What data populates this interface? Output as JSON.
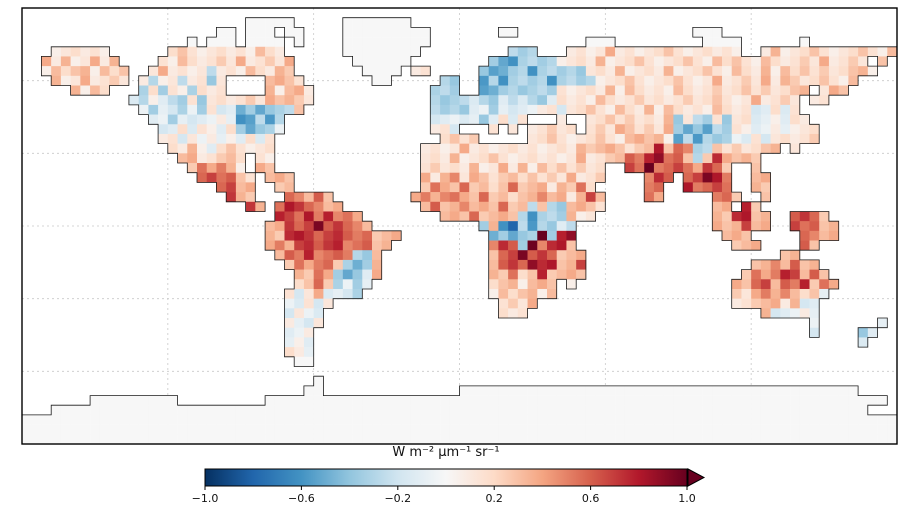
{
  "figure": {
    "background": "#ffffff",
    "frame_color": "#000000",
    "gridline_color": "#c9c9c9",
    "coastline_color": "#1a1a1a"
  },
  "chart_data": {
    "type": "heatmap",
    "subtype": "global-gridded-world-map",
    "title": "",
    "colorbar_label": "W m⁻² µm⁻¹ sr⁻¹",
    "colormap": "RdBu_r",
    "value_range": [
      -1.0,
      1.0
    ],
    "tick_labels": [
      "−1.0",
      "−0.6",
      "−0.2",
      "0.2",
      "0.6",
      "1.0"
    ],
    "tick_values": [
      -1.0,
      -0.6,
      -0.2,
      0.2,
      0.6,
      1.0
    ],
    "extend": "max",
    "colors": [
      "#053061",
      "#2166ac",
      "#4393c3",
      "#92c5de",
      "#d1e5f0",
      "#f7f7f7",
      "#fddbc7",
      "#f4a582",
      "#d6604d",
      "#b2182b",
      "#67001f"
    ],
    "lon_range": [
      -180,
      180
    ],
    "lat_range": [
      90,
      -90
    ],
    "grid_lons": [
      -120,
      -60,
      0,
      60,
      120
    ],
    "grid_lats": [
      60,
      30,
      0,
      -30,
      -60
    ],
    "grid_cols": 90,
    "grid_rows": 45,
    "value_codes": {
      ".": null,
      "n": 0.0,
      "c": -0.12,
      "b": -0.32,
      "B": -0.55,
      "D": -0.8,
      "p": 0.12,
      "o": 0.32,
      "O": 0.55,
      "R": 0.75,
      "X": 0.95
    },
    "cells": [
      [
        "..........",
        "..........",
        "..........",
        "..........",
        "..........",
        "..........",
        "..........",
        "..........",
        ".........."
      ],
      [
        "..........",
        "..........",
        "...nnnnn..",
        "...nnnnnnn",
        "..........",
        "..........",
        "..........",
        "..........",
        ".........."
      ],
      [
        "..........",
        "..........",
        "nn.nnn.nn.",
        "...nnnnnnn",
        "nn.......n",
        "n.........",
        ".........n",
        "nn........",
        ".........."
      ],
      [
        "..........",
        ".......n.n",
        "nn.nnnn.n.",
        "...nnnnnnn",
        "nn........",
        "........nn",
        "n.........",
        "nnnn......",
        "n........."
      ],
      [
        "...pppppp.",
        ".....poppp",
        "ppppopp...",
        "...nnnnnnn",
        "n.........",
        "bbb...pppp",
        "opppppoppp",
        "pppp..popp",
        "poppppoppo"
      ],
      [
        "..opoppopo",
        "....ppoppp",
        "opoppopo..",
        "....nnnnnn",
        "........bB",
        "Bbbbbppppo",
        "pppoppppop",
        "popoppoppp",
        "opoppop.o."
      ],
      [
        "..popoopop",
        "o..poppppb",
        "pppoppoo..",
        ".....nnnn.",
        "pp.....bBB",
        "bbBbbbbbpp",
        "poppppoppp",
        "oppoppopop",
        "opoppoop.."
      ],
      [
        "...oppoppo",
        "p.pbppbppb",
        "p....ooop.",
        "......nn..",
        "...bb..BbB",
        "bbbbBbbbbp",
        "ppoppppopp",
        "poppopopoo",
        "ppoppo...."
      ],
      [
        ".....opop.",
        "..bpbppbpp",
        "p....opoop",
        "..........",
        "..bbb..BBb",
        "bbbbbppppp",
        "opoppppopp",
        "poppopoppo",
        "o.poo....."
      ],
      [
        "..........",
        ".cbpcbbpbp",
        "pppopoooop",
        "..........",
        "..bbbbcbbc",
        "bcbbcppppo",
        "pppoppppop",
        "popppoppop",
        ".pp......."
      ],
      [
        "..........",
        "..cbccbcbp",
        "ccBbBbbbo.",
        "..........",
        "..bbbbccbc",
        "cccppcppop",
        "poppopoppp",
        "popppccpcp",
        ".........."
      ],
      [
        "..........",
        "...ccbcccc",
        "pcBBbBb...",
        "..........",
        "..cccccbcp",
        "cp...p..pp",
        "opopppobpb",
        "bpbppccpcp",
        "p........."
      ],
      [
        "..........",
        "....ccpcpp",
        "cpbBbbc...",
        "..........",
        "..ppc...p.",
        "p.ppopp.po",
        "poopopobBb",
        "Bbbppccpcp",
        "pp........"
      ],
      [
        "..........",
        "....ppcpcp",
        "cpcpcp....",
        "..........",
        "...popo...",
        "..ppoppppo",
        "ppoooopBbB",
        "bbbccpcppp",
        "po........"
      ],
      [
        "..........",
        ".....ppopc",
        "popppp....",
        "..........",
        ".ppppopppp",
        "pppppppooo",
        "oopooRoOOb",
        "bopoppoo.p",
        ".........."
      ],
      [
        "..........",
        "......oopp",
        "oop.pp....",
        "..........",
        ".pppopppop",
        "pppppppopp",
        "ooOORXOOob",
        "oRoooo....",
        ".........."
      ],
      [
        "..........",
        ".......oOo",
        "Oop.oo....",
        "..........",
        ".popppoppo",
        "popopopopp",
        "..ROXOOROo",
        "ROo..o....",
        ".........."
      ],
      [
        "..........",
        "........OR",
        "OOop.ooo..",
        "..........",
        ".opoOpoopo",
        "opopopoppo",
        "....ORO.OR",
        "XRO..oo...",
        ".........."
      ],
      [
        "..........",
        "..........",
        "ORoo..oo..",
        "..........",
        ".oOooOoopo",
        "OooopooOp.",
        "....OO..RO",
        "ORO..oo...",
        ".........."
      ],
      [
        "..........",
        "..........",
        ".Roo...OOo",
        "Oo........",
        "oOoOOooOoo",
        "pooOoopoRo",
        "....Oo....",
        ".OOo..o...",
        ".........."
      ],
      [
        "..........",
        "..........",
        "...Ro.ORRO",
        "Ooo.......",
        ".oOooOoooO",
        "oobobbooop",
        "..........",
        ".oo.Ro....",
        ".........."
      ],
      [
        "..........",
        "..........",
        "......RROR",
        "OROOo.....",
        "...oooOooo",
        "obBbbbopp.",
        "..........",
        ".ooRRoo..O",
        "ROo......."
      ],
      [
        "..........",
        "..........",
        ".....ooROR",
        "XOROOo....",
        ".......boB",
        "DbBbbcb...",
        "..........",
        ".oooRoo..R",
        "OOoo......"
      ],
      [
        "..........",
        "..........",
        ".....ooRRR",
        "ORROOOooo.",
        "........Bb",
        "BbbXbRX...",
        "..........",
        "..ooo.....",
        "OOoo......"
      ],
      [
        "..........",
        "..........",
        ".....oOoRR",
        "ORROOOoo..",
        "........OR",
        "ObXORRo...",
        "..........",
        "...ooo....",
        "Oo........"
      ],
      [
        "..........",
        "..........",
        "......oOOR",
        "OOOObbo...",
        "........oO",
        "RXOROooo..",
        "..........",
        "........oo",
        ".........."
      ],
      [
        "..........",
        "..........",
        ".......oOo",
        "OOobBbo...",
        "........oO",
        "ROXRRooR..",
        "..........",
        ".....ooOoO",
        "oo........"
      ],
      [
        "..........",
        "..........",
        "........oo",
        "OobBbco...",
        "........oo",
        "OpoRoooo..",
        "..........",
        "....oOoORR",
        "oOo......."
      ],
      [
        "..........",
        "..........",
        "........po",
        "Oobcbc....",
        "........po",
        "opooo.p...",
        "..........",
        "...ooORoOO",
        "RoOo......"
      ],
      [
        "..........",
        "..........",
        ".......pcp",
        "occcb.....",
        "........po",
        "poopo.....",
        "..........",
        "...opoOoOo",
        "poc......."
      ],
      [
        "..........",
        "..........",
        ".......ccp",
        "cp........",
        ".........p",
        "opo.......",
        "..........",
        "...ppooopo",
        "cc........"
      ],
      [
        "..........",
        "..........",
        ".......cpc",
        "c.........",
        ".........p",
        "pp........",
        "..........",
        "......occc",
        "pc........"
      ],
      [
        "..........",
        "..........",
        ".......pcc",
        "p.........",
        "..........",
        "..........",
        "..........",
        "..........",
        ".c......c."
      ],
      [
        "..........",
        "..........",
        ".......ccp",
        "..........",
        "..........",
        "..........",
        "..........",
        "..........",
        ".c....bc.."
      ],
      [
        "..........",
        "..........",
        ".......cpc",
        "..........",
        "..........",
        "..........",
        "..........",
        "..........",
        "......c..."
      ],
      [
        "..........",
        "..........",
        ".......ppc",
        "..........",
        "..........",
        "..........",
        "..........",
        "..........",
        ".........."
      ],
      [
        "..........",
        "..........",
        "........nn",
        "..........",
        "..........",
        "..........",
        "..........",
        "..........",
        ".........."
      ],
      [
        "..........",
        "..........",
        "..........",
        "..........",
        "..........",
        "..........",
        "..........",
        "..........",
        ".........."
      ],
      [
        "..........",
        "..........",
        "..........",
        "n.........",
        "..........",
        "..........",
        "..........",
        "..........",
        ".........."
      ],
      [
        "..........",
        "..........",
        ".........n",
        "n.........",
        ".....nnnnn",
        "nnnnnnnnnn",
        "nnnnnnnnnn",
        "nnnnnnnnnn",
        "nnnnnn...."
      ],
      [
        ".......nnn",
        "nnnnnn....",
        ".....nnnnn",
        "nnnnnnnnnn",
        "nnnnnnnnnn",
        "nnnnnnnnnn",
        "nnnnnnnnnn",
        "nnnnnnnnnn",
        "nnnnnnnnn."
      ],
      [
        "...nnnnnnn",
        "nnnnnnnnnn",
        "nnnnnnnnnn",
        "nnnnnnnnnn",
        "nnnnnnnnnn",
        "nnnnnnnnnn",
        "nnnnnnnnnn",
        "nnnnnnnnnn",
        "nnnnnnn..."
      ],
      [
        "nnnnnnnnnn",
        "nnnnnnnnnn",
        "nnnnnnnnnn",
        "nnnnnnnnnn",
        "nnnnnnnnnn",
        "nnnnnnnnnn",
        "nnnnnnnnnn",
        "nnnnnnnnnn",
        "nnnnnnnnnn"
      ],
      [
        "nnnnnnnnnn",
        "nnnnnnnnnn",
        "nnnnnnnnnn",
        "nnnnnnnnnn",
        "nnnnnnnnnn",
        "nnnnnnnnnn",
        "nnnnnnnnnn",
        "nnnnnnnnnn",
        "nnnnnnnnnn"
      ],
      [
        "nnnnnnnnnn",
        "nnnnnnnnnn",
        "nnnnnnnnnn",
        "nnnnnnnnnn",
        "nnnnnnnnnn",
        "nnnnnnnnnn",
        "nnnnnnnnnn",
        "nnnnnnnnnn",
        "nnnnnnnnnn"
      ]
    ]
  }
}
